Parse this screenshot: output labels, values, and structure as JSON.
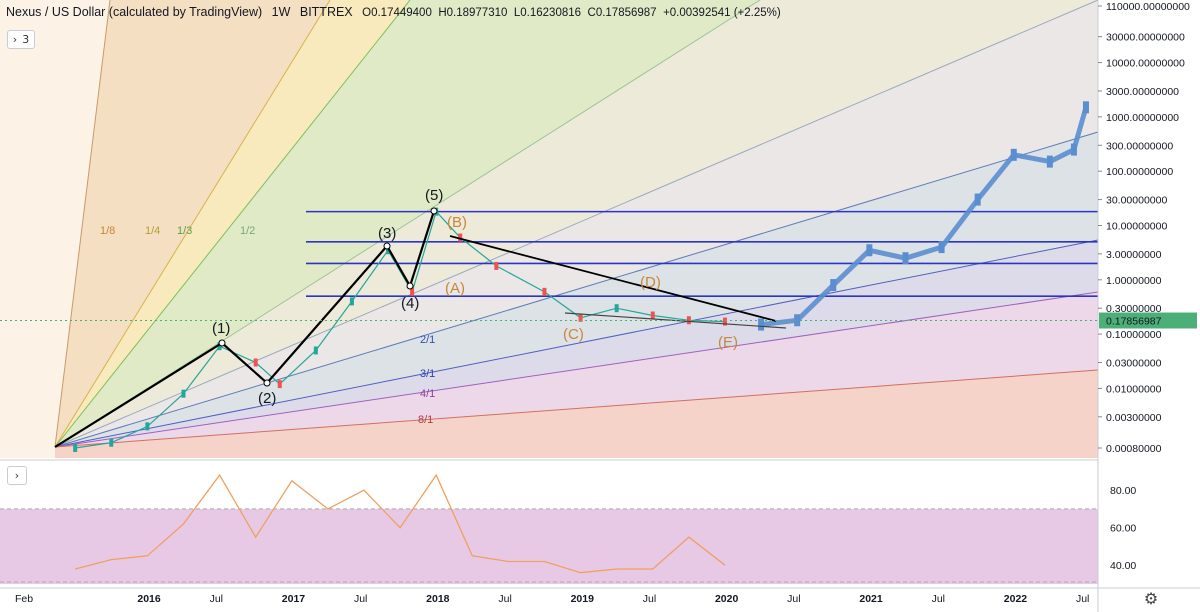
{
  "header": {
    "symbol": "Nexus / US Dollar (calculated by TradingView)",
    "interval": "1W",
    "exchange": "BITTREX",
    "open": "O0.17449400",
    "high": "H0.18977310",
    "low": "L0.16230816",
    "close": "C0.17856987",
    "change": "+0.00392541 (+2.25%)",
    "indicators_count": "3"
  },
  "price_axis": {
    "ticks": [
      "110000.00000000",
      "30000.00000000",
      "10000.00000000",
      "3000.00000000",
      "1000.00000000",
      "300.00000000",
      "100.00000000",
      "30.00000000",
      "10.00000000",
      "3.00000000",
      "1.00000000",
      "0.30000000",
      "0.10000000",
      "0.03000000",
      "0.01000000",
      "0.00300000",
      "0.00080000"
    ],
    "current_price_label": "0.17856987"
  },
  "rsi_axis": {
    "ticks": [
      "80.00",
      "60.00",
      "40.00"
    ]
  },
  "time_axis": {
    "labels": [
      {
        "text": "Feb",
        "bold": false
      },
      {
        "text": "2016",
        "bold": true
      },
      {
        "text": "Jul",
        "bold": false
      },
      {
        "text": "2017",
        "bold": true
      },
      {
        "text": "Jul",
        "bold": false
      },
      {
        "text": "2018",
        "bold": true
      },
      {
        "text": "Jul",
        "bold": false
      },
      {
        "text": "2019",
        "bold": true
      },
      {
        "text": "Jul",
        "bold": false
      },
      {
        "text": "2020",
        "bold": true
      },
      {
        "text": "Jul",
        "bold": false
      },
      {
        "text": "2021",
        "bold": true
      },
      {
        "text": "Jul",
        "bold": false
      },
      {
        "text": "2022",
        "bold": true
      },
      {
        "text": "Jul",
        "bold": false
      }
    ]
  },
  "annotations": {
    "elliott_waves": [
      "(1)",
      "(2)",
      "(3)",
      "(4)",
      "(5)"
    ],
    "corrective_waves": [
      "(A)",
      "(B)",
      "(C)",
      "(D)",
      "(E)"
    ],
    "gann_fan_labels": [
      "1/8",
      "1/4",
      "1/3",
      "1/2",
      "2/1",
      "3/1",
      "4/1",
      "8/1"
    ]
  },
  "colors": {
    "wave_text": "#131722",
    "corrective_text": "#c8873a",
    "horizontal_lines": "#2a35c4",
    "projection": "#5a8ed0",
    "rsi_line": "#f0a060",
    "rsi_band": "#e7c9e6",
    "current_price_bg": "#4caf78"
  },
  "chart_data": [
    {
      "type": "line",
      "title": "Nexus / US Dollar (calculated by TradingView)",
      "y_scale": "log",
      "ylim": [
        0.0005,
        110000
      ],
      "x_range": [
        "2015-02",
        "2022-08"
      ],
      "series": [
        {
          "name": "",
          "x": [
            "2015-07",
            "2015-10",
            "2016-01",
            "2016-04",
            "2016-07",
            "2016-10",
            "2016-12",
            "2017-03",
            "2017-06",
            "2017-09",
            "2017-11",
            "2018-01",
            "2018-03",
            "2018-06",
            "2018-10",
            "2019-01",
            "2019-04",
            "2019-07",
            "2019-10",
            "2020-01"
          ],
          "y": [
            0.0008,
            0.001,
            0.002,
            0.008,
            0.06,
            0.03,
            0.012,
            0.05,
            0.4,
            3.5,
            0.6,
            18,
            6,
            1.8,
            0.6,
            0.2,
            0.3,
            0.22,
            0.18,
            0.17
          ]
        },
        {
          "name": "",
          "x": [
            "2020-04",
            "2020-07",
            "2020-10",
            "2021-01",
            "2021-04",
            "2021-07",
            "2021-10",
            "2022-01",
            "2022-04",
            "2022-06",
            "2022-07"
          ],
          "y": [
            0.15,
            0.18,
            0.8,
            3.5,
            2.5,
            4,
            30,
            200,
            150,
            250,
            1500
          ]
        }
      ],
      "horizontal_levels": [
        18,
        5,
        2,
        0.5
      ]
    },
    {
      "type": "line",
      "ylim": [
        30,
        95
      ],
      "rsi_band": [
        30,
        70
      ],
      "series": [
        {
          "name": "",
          "x": [
            "2015-07",
            "2015-10",
            "2016-01",
            "2016-04",
            "2016-07",
            "2016-10",
            "2017-01",
            "2017-04",
            "2017-07",
            "2017-10",
            "2018-01",
            "2018-04",
            "2018-07",
            "2018-10",
            "2019-01",
            "2019-04",
            "2019-07",
            "2019-10",
            "2020-01"
          ],
          "y": [
            38,
            43,
            45,
            62,
            88,
            55,
            85,
            70,
            80,
            60,
            88,
            45,
            42,
            42,
            36,
            38,
            38,
            55,
            40
          ]
        }
      ]
    }
  ]
}
